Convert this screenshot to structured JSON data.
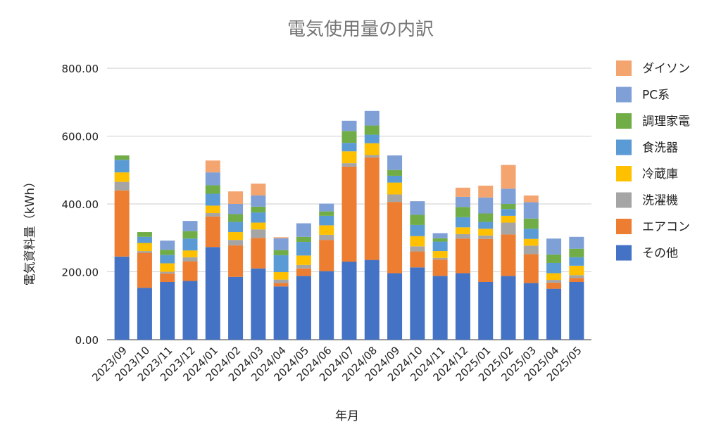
{
  "chart_data": {
    "type": "bar",
    "stacked": true,
    "title": "電気使用量の内訳",
    "xlabel": "年月",
    "ylabel": "電気資料量（kWh）",
    "ylim": [
      0,
      800
    ],
    "yticks": [
      0,
      200,
      400,
      600,
      800
    ],
    "ytick_labels": [
      "0.00",
      "200.00",
      "400.00",
      "600.00",
      "800.00"
    ],
    "grid": true,
    "legend_position": "right",
    "categories": [
      "2023/09",
      "2023/10",
      "2023/11",
      "2023/12",
      "2024/01",
      "2024/02",
      "2024/03",
      "2024/04",
      "2024/05",
      "2024/06",
      "2024/07",
      "2024/08",
      "2024/09",
      "2024/10",
      "2024/11",
      "2024/12",
      "2025/01",
      "2025/02",
      "2025/03",
      "2025/04",
      "2025/05"
    ],
    "series": [
      {
        "name": "その他",
        "color": "#4472C4",
        "values": [
          245,
          153,
          170,
          173,
          273,
          185,
          210,
          157,
          188,
          202,
          230,
          235,
          196,
          213,
          188,
          196,
          170,
          188,
          167,
          150,
          170
        ]
      },
      {
        "name": "エアコン",
        "color": "#ED7D31",
        "values": [
          195,
          103,
          25,
          58,
          90,
          93,
          90,
          10,
          22,
          92,
          280,
          302,
          210,
          47,
          48,
          102,
          127,
          122,
          85,
          18,
          12
        ]
      },
      {
        "name": "洗濯機",
        "color": "#A5A5A5",
        "values": [
          25,
          5,
          5,
          12,
          10,
          16,
          25,
          10,
          10,
          15,
          10,
          7,
          22,
          15,
          5,
          13,
          10,
          35,
          25,
          8,
          8
        ]
      },
      {
        "name": "冷蔵庫",
        "color": "#FFC000",
        "values": [
          28,
          24,
          25,
          20,
          22,
          23,
          20,
          22,
          28,
          28,
          35,
          35,
          35,
          30,
          20,
          20,
          20,
          20,
          20,
          20,
          28
        ]
      },
      {
        "name": "食洗器",
        "color": "#5B9BD5",
        "values": [
          37,
          18,
          25,
          35,
          35,
          30,
          30,
          50,
          40,
          28,
          25,
          25,
          20,
          33,
          28,
          30,
          20,
          20,
          30,
          30,
          25
        ]
      },
      {
        "name": "調理家電",
        "color": "#70AD47",
        "values": [
          13,
          14,
          15,
          22,
          25,
          23,
          17,
          15,
          15,
          13,
          35,
          27,
          17,
          30,
          10,
          30,
          25,
          15,
          30,
          25,
          25
        ]
      },
      {
        "name": "PC系",
        "color": "#7F9FD7",
        "values": [
          0,
          0,
          27,
          30,
          38,
          30,
          33,
          35,
          40,
          23,
          30,
          43,
          43,
          40,
          15,
          30,
          47,
          45,
          48,
          47,
          35
        ]
      },
      {
        "name": "ダイソン",
        "color": "#F4A46F",
        "values": [
          0,
          0,
          0,
          0,
          35,
          37,
          35,
          3,
          0,
          0,
          0,
          0,
          0,
          0,
          0,
          27,
          35,
          70,
          20,
          0,
          0
        ]
      }
    ]
  }
}
